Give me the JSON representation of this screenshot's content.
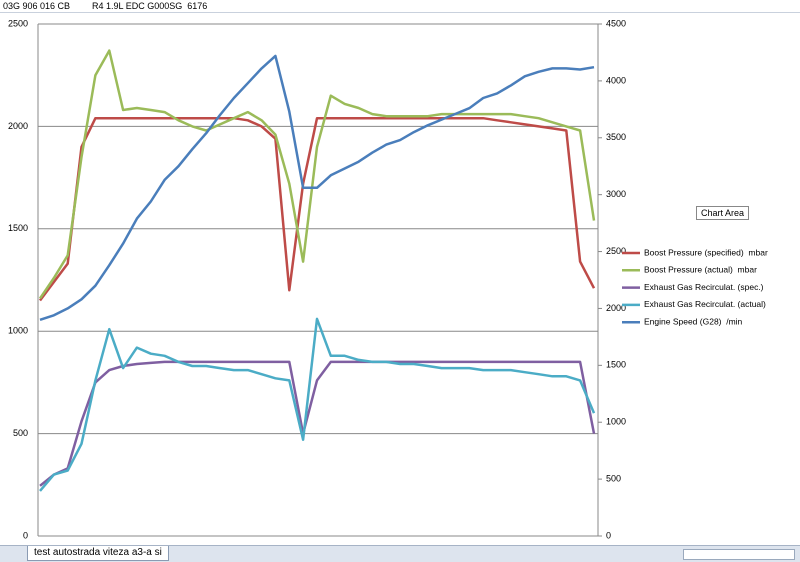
{
  "header": {
    "part_number": "03G 906 016 CB",
    "engine": "R4 1.9L EDC G000SG  6176"
  },
  "chart_data": {
    "type": "line",
    "ylim": [
      0,
      2500
    ],
    "yticks": [
      0,
      500,
      1000,
      1500,
      2000,
      2500
    ],
    "y2lim": [
      0,
      4500
    ],
    "y2ticks": [
      0,
      500,
      1000,
      1500,
      2000,
      2500,
      3000,
      3500,
      4000,
      4500
    ],
    "grid": true,
    "series": [
      {
        "name": "Boost Pressure (specified)  mbar",
        "color": "#be4b48",
        "values": [
          1150,
          1240,
          1330,
          1900,
          2040,
          2040,
          2040,
          2040,
          2040,
          2040,
          2040,
          2040,
          2040,
          2040,
          2040,
          2030,
          2000,
          1940,
          1200,
          1720,
          2040,
          2040,
          2040,
          2040,
          2040,
          2040,
          2040,
          2040,
          2040,
          2040,
          2040,
          2040,
          2040,
          2030,
          2020,
          2010,
          2000,
          1990,
          1980,
          1340,
          1210
        ]
      },
      {
        "name": "Boost Pressure (actual)  mbar",
        "color": "#9bbb59",
        "values": [
          1160,
          1260,
          1370,
          1850,
          2250,
          2370,
          2080,
          2090,
          2080,
          2070,
          2030,
          2000,
          1980,
          2010,
          2040,
          2070,
          2030,
          1960,
          1720,
          1340,
          1900,
          2150,
          2110,
          2090,
          2060,
          2050,
          2050,
          2050,
          2050,
          2060,
          2060,
          2060,
          2060,
          2060,
          2060,
          2050,
          2040,
          2020,
          2000,
          1980,
          1540
        ]
      },
      {
        "name": "Exhaust Gas Recirculat. (spec.)",
        "color": "#7f5fa1",
        "values": [
          245,
          300,
          330,
          560,
          750,
          810,
          830,
          840,
          845,
          850,
          850,
          850,
          850,
          850,
          850,
          850,
          850,
          850,
          850,
          500,
          760,
          850,
          850,
          850,
          850,
          850,
          850,
          850,
          850,
          850,
          850,
          850,
          850,
          850,
          850,
          850,
          850,
          850,
          850,
          850,
          500
        ]
      },
      {
        "name": "Exhaust Gas Recirculat. (actual)",
        "color": "#4bacc6",
        "values": [
          220,
          300,
          320,
          450,
          760,
          1010,
          820,
          920,
          890,
          880,
          850,
          830,
          830,
          820,
          810,
          810,
          790,
          770,
          760,
          470,
          1060,
          880,
          880,
          860,
          850,
          850,
          840,
          840,
          830,
          820,
          820,
          820,
          810,
          810,
          810,
          800,
          790,
          780,
          780,
          760,
          600
        ]
      },
      {
        "name": "Engine Speed (G28)  /min",
        "color": "#4a7ebb",
        "axis": "y2",
        "values": [
          1900,
          1940,
          2000,
          2080,
          2200,
          2380,
          2570,
          2790,
          2940,
          3130,
          3250,
          3400,
          3540,
          3700,
          3850,
          3980,
          4110,
          4220,
          3730,
          3060,
          3060,
          3170,
          3230,
          3290,
          3370,
          3440,
          3480,
          3550,
          3610,
          3660,
          3710,
          3760,
          3850,
          3890,
          3960,
          4040,
          4080,
          4110,
          4110,
          4100,
          4120
        ]
      }
    ]
  },
  "tooltip": "Chart Area",
  "sheet_tab": "test autostrada viteza a3-a si"
}
